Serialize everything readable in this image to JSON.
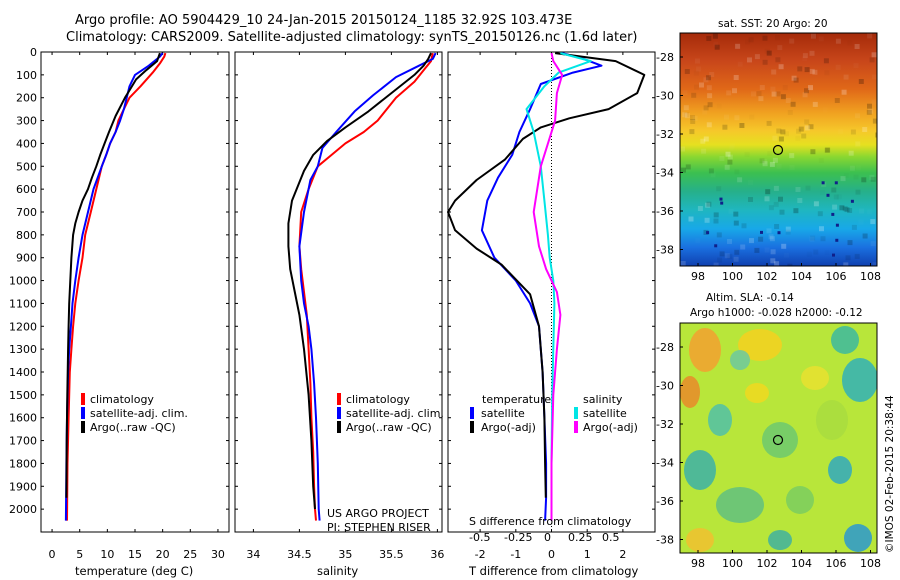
{
  "header": {
    "title_line1": "Argo profile: AO 5904429_10 24-Jan-2015 20150124_1185 32.92S 103.473E",
    "title_line2": "Climatology: CARS2009. Satellite-adjusted climatology: synTS_20150126.nc (1.6d later)"
  },
  "footer_stamp": "©IMOS 02-Feb-2015 20:38:44",
  "colors": {
    "climatology": "#ff0000",
    "satellite": "#0000ff",
    "argo": "#000000",
    "sal_satellite": "#00e5e5",
    "sal_argo": "#ff00ff"
  },
  "chart_data": [
    {
      "type": "line",
      "panel": "temperature",
      "xlabel": "temperature (deg C)",
      "xticks": [
        0,
        5,
        10,
        15,
        20,
        25,
        30
      ],
      "xlim": [
        -2,
        32
      ],
      "ylim": [
        2100,
        0
      ],
      "yticks": [
        0,
        100,
        200,
        300,
        400,
        500,
        600,
        700,
        800,
        900,
        1000,
        1100,
        1200,
        1300,
        1400,
        1500,
        1600,
        1700,
        1800,
        1900,
        2000
      ],
      "legend": [
        "climatology",
        "satellite-adj. clim.",
        "Argo(..raw -QC)"
      ],
      "series": [
        {
          "name": "climatology",
          "color": "#ff0000",
          "x": [
            20.5,
            20.3,
            19.5,
            18.2,
            16,
            14,
            13,
            12,
            11.5,
            10.5,
            9.8,
            9,
            8,
            7,
            6,
            5.5,
            4.8,
            4.2,
            3.8,
            3.5,
            3.2,
            3.0,
            2.8,
            2.7
          ],
          "y": [
            5,
            20,
            50,
            90,
            150,
            200,
            250,
            300,
            350,
            400,
            450,
            500,
            600,
            700,
            800,
            900,
            1000,
            1100,
            1200,
            1300,
            1400,
            1600,
            1800,
            2050
          ]
        },
        {
          "name": "satellite-adj. clim.",
          "color": "#0000ff",
          "x": [
            20.0,
            19.5,
            17.5,
            15,
            14,
            13.5,
            13,
            12.3,
            11.5,
            10.5,
            9.8,
            9,
            7.5,
            6.5,
            5.5,
            4.8,
            4.2,
            3.7,
            3.4,
            3.1,
            2.9,
            2.7,
            2.6,
            2.5
          ],
          "y": [
            5,
            20,
            60,
            100,
            150,
            200,
            250,
            300,
            350,
            400,
            450,
            500,
            600,
            700,
            800,
            900,
            1000,
            1100,
            1200,
            1300,
            1400,
            1600,
            1800,
            2050
          ]
        },
        {
          "name": "Argo(..raw -QC)",
          "color": "#000000",
          "x": [
            19.5,
            19.0,
            17.0,
            15.2,
            13.2,
            11.5,
            10.3,
            9.5,
            8.7,
            8.0,
            7.2,
            6.5,
            5.5,
            4.8,
            4.2,
            3.8,
            3.5,
            3.3,
            3.1,
            3.0,
            2.9,
            2.75,
            2.65,
            2.6
          ],
          "y": [
            5,
            40,
            80,
            120,
            200,
            280,
            350,
            400,
            450,
            500,
            550,
            600,
            650,
            700,
            750,
            800,
            900,
            1000,
            1100,
            1200,
            1300,
            1500,
            1700,
            1950
          ]
        }
      ]
    },
    {
      "type": "line",
      "panel": "salinity",
      "xlabel": "salinity",
      "xticks": [
        34,
        34.5,
        35,
        35.5,
        36
      ],
      "xticklabels": [
        "34",
        "34.5",
        "35",
        "35.5",
        "36"
      ],
      "xlim": [
        33.8,
        36.05
      ],
      "ylim": [
        2100,
        0
      ],
      "legend": [
        "climatology",
        "satellite-adj. clim.",
        "Argo(..raw -QC)"
      ],
      "annotation": [
        "US ARGO PROJECT",
        "PI: STEPHEN RISER"
      ],
      "series": [
        {
          "name": "climatology",
          "color": "#ff0000",
          "x": [
            35.95,
            35.93,
            35.85,
            35.75,
            35.55,
            35.35,
            35.2,
            35.0,
            34.85,
            34.7,
            34.6,
            34.52,
            34.5,
            34.52,
            34.55,
            34.58,
            34.6,
            34.62,
            34.63,
            34.65,
            34.66,
            34.67,
            34.68
          ],
          "y": [
            5,
            40,
            80,
            130,
            200,
            300,
            350,
            400,
            450,
            500,
            600,
            700,
            850,
            950,
            1050,
            1150,
            1300,
            1450,
            1600,
            1750,
            1900,
            2000,
            2050
          ]
        },
        {
          "name": "satellite-adj. clim.",
          "color": "#0000ff",
          "x": [
            35.98,
            35.95,
            35.8,
            35.55,
            35.3,
            35.1,
            34.9,
            34.75,
            34.7,
            34.62,
            34.55,
            34.5,
            34.52,
            34.55,
            34.6,
            34.63,
            34.66,
            34.68,
            34.7,
            34.71,
            34.72
          ],
          "y": [
            5,
            30,
            60,
            110,
            190,
            260,
            350,
            420,
            500,
            560,
            700,
            850,
            1000,
            1100,
            1200,
            1300,
            1450,
            1600,
            1800,
            2000,
            2050
          ]
        },
        {
          "name": "Argo(..raw -QC)",
          "color": "#000000",
          "x": [
            35.93,
            35.9,
            35.85,
            35.75,
            35.5,
            35.25,
            35.0,
            34.8,
            34.65,
            34.55,
            34.42,
            34.38,
            34.38,
            34.4,
            34.45,
            34.5,
            34.55,
            34.6,
            34.63,
            34.65,
            34.67
          ],
          "y": [
            5,
            30,
            60,
            100,
            180,
            260,
            330,
            390,
            450,
            520,
            650,
            750,
            850,
            950,
            1050,
            1150,
            1300,
            1500,
            1700,
            1900,
            2000
          ]
        }
      ]
    },
    {
      "type": "line",
      "panel": "difference",
      "xlabel": "T difference from climatology",
      "xticks": [
        -2,
        -1,
        0,
        1,
        2
      ],
      "xlim": [
        -2.9,
        2.9
      ],
      "s_axis_label": "S difference from climatology",
      "s_ticks": [
        "-0.5",
        "-0.25",
        "0",
        "0.25",
        "0.5"
      ],
      "ylim": [
        2100,
        0
      ],
      "legend_headers": [
        "temperature",
        "salinity"
      ],
      "legend": [
        "satellite",
        "Argo(-adj)",
        "satellite",
        "Argo(-adj)"
      ],
      "series": [
        {
          "name": "satellite",
          "color": "#0000ff",
          "x": [
            0.3,
            0.9,
            1.4,
            0.6,
            -0.3,
            -0.6,
            -0.9,
            -1.1,
            -1.5,
            -1.8,
            -1.95,
            -1.6,
            -1.0,
            -0.6,
            -0.35,
            -0.25,
            -0.2,
            -0.15,
            -0.15,
            -0.18
          ],
          "y": [
            5,
            30,
            60,
            90,
            140,
            250,
            350,
            450,
            550,
            650,
            780,
            900,
            1000,
            1100,
            1200,
            1400,
            1600,
            1800,
            1950,
            2050
          ]
        },
        {
          "name": "Argo(-adj)",
          "color": "#000000",
          "x": [
            0.1,
            1.8,
            2.6,
            2.4,
            1.6,
            0.5,
            -0.3,
            -0.8,
            -1.3,
            -2.1,
            -2.7,
            -2.9,
            -2.7,
            -2.1,
            -1.4,
            -0.6,
            -0.35,
            -0.25,
            -0.2,
            -0.18,
            -0.16
          ],
          "y": [
            5,
            40,
            100,
            180,
            250,
            290,
            330,
            380,
            470,
            560,
            650,
            700,
            780,
            860,
            930,
            1060,
            1200,
            1400,
            1600,
            1800,
            1950
          ]
        },
        {
          "name": "satellite",
          "color": "#00e5e5",
          "x": [
            0.25,
            1.1,
            0.2,
            -0.2,
            -0.7,
            -0.5,
            -0.3,
            -0.2,
            -0.1,
            -0.05,
            0.05,
            0.08,
            0.05,
            0.02,
            0.0,
            0.0
          ],
          "y": [
            5,
            40,
            90,
            150,
            250,
            350,
            500,
            650,
            800,
            900,
            1000,
            1100,
            1300,
            1500,
            1800,
            2050
          ]
        },
        {
          "name": "Argo(-adj)",
          "color": "#ff00ff",
          "x": [
            0.0,
            0.05,
            0.3,
            0.15,
            0.1,
            -0.3,
            -0.5,
            -0.35,
            -0.15,
            0.15,
            0.25,
            0.15,
            0.05,
            0.0,
            0.0
          ],
          "y": [
            5,
            40,
            100,
            180,
            300,
            500,
            700,
            850,
            950,
            1050,
            1150,
            1300,
            1500,
            1800,
            2050
          ]
        }
      ]
    }
  ],
  "maps": {
    "sst": {
      "title": "sat. SST: 20 Argo: 20",
      "xticks": [
        "98",
        "100",
        "102",
        "104",
        "106",
        "108"
      ],
      "yticks": [
        "-28",
        "-30",
        "-32",
        "-34",
        "-36",
        "-38"
      ]
    },
    "sla": {
      "title1": "Altim. SLA: -0.14",
      "title2": "Argo h1000: -0.028 h2000: -0.12",
      "xticks": [
        "98",
        "100",
        "102",
        "104",
        "106",
        "108"
      ],
      "yticks": [
        "-28",
        "-30",
        "-32",
        "-34",
        "-36",
        "-38"
      ]
    }
  }
}
